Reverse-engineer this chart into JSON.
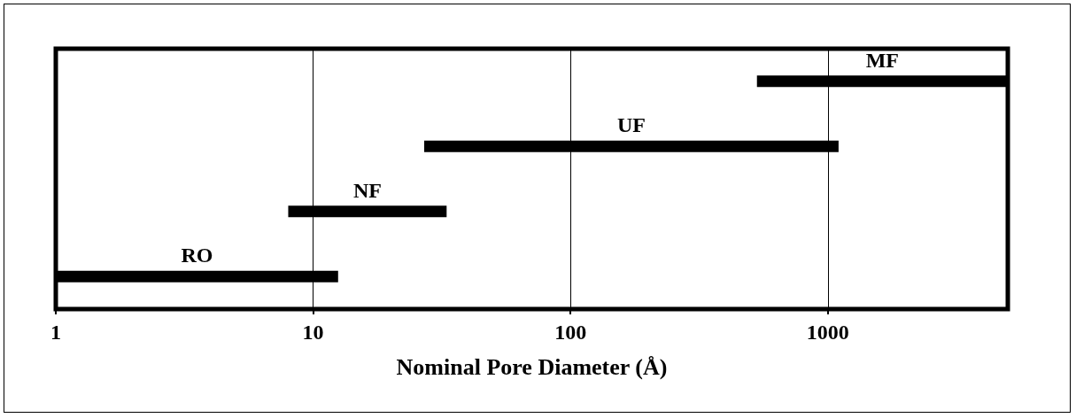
{
  "chart_data": {
    "type": "bar",
    "orientation": "horizontal",
    "categories": [
      "MF",
      "UF",
      "NF",
      "RO"
    ],
    "base": [
      530,
      27,
      8,
      1
    ],
    "values": [
      4470,
      1073,
      25,
      11.5
    ],
    "color": "#000000",
    "xlabel": "Nominal Pore Diameter (Å)",
    "log": "x",
    "xlim": [
      1,
      5000
    ],
    "xticks": [
      1,
      10,
      100,
      1000
    ],
    "grid": "x",
    "tick_labels": "x"
  }
}
